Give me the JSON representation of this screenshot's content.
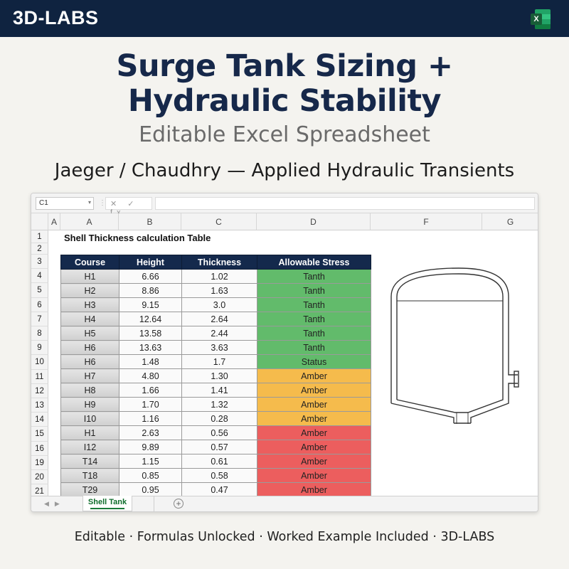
{
  "brand": "3D-LABS",
  "header": {
    "title_line1": "Surge Tank Sizing +",
    "title_line2": "Hydraulic Stability",
    "subtitle": "Editable Excel Spreadsheet",
    "reference": "Jaeger / Chaudhry — Applied Hydraulic Transients"
  },
  "app_icon": {
    "name": "excel-icon",
    "letter": "X"
  },
  "formula_bar": {
    "name_box": "C1",
    "fx": "✕ ✓ fx",
    "content": ""
  },
  "column_headers": [
    "A",
    "A",
    "B",
    "C",
    "D",
    "F",
    "G"
  ],
  "row_numbers": [
    "1",
    "2",
    "3",
    "4",
    "5",
    "6",
    "7",
    "8",
    "9",
    "10",
    "11",
    "12",
    "13",
    "14",
    "15",
    "16",
    "19",
    "20",
    "21"
  ],
  "sheet_title": "Shell Thickness calculation Table",
  "table": {
    "headers": [
      "Course",
      "Height",
      "Thickness",
      "Allowable Stress"
    ],
    "rows": [
      {
        "course": "H1",
        "height": "6.66",
        "thickness": "1.02",
        "stress": "Tanth",
        "status": "green"
      },
      {
        "course": "H2",
        "height": "8.86",
        "thickness": "1.63",
        "stress": "Tanth",
        "status": "green"
      },
      {
        "course": "H3",
        "height": "9.15",
        "thickness": "3.0",
        "stress": "Tanth",
        "status": "green"
      },
      {
        "course": "H4",
        "height": "12.64",
        "thickness": "2.64",
        "stress": "Tanth",
        "status": "green"
      },
      {
        "course": "H5",
        "height": "13.58",
        "thickness": "2.44",
        "stress": "Tanth",
        "status": "green"
      },
      {
        "course": "H6",
        "height": "13.63",
        "thickness": "3.63",
        "stress": "Tanth",
        "status": "green"
      },
      {
        "course": "H6",
        "height": "1.48",
        "thickness": "1.7",
        "stress": "Status",
        "status": "green"
      },
      {
        "course": "H7",
        "height": "4.80",
        "thickness": "1.30",
        "stress": "Amber",
        "status": "amber"
      },
      {
        "course": "H8",
        "height": "1.66",
        "thickness": "1.41",
        "stress": "Amber",
        "status": "amber"
      },
      {
        "course": "H9",
        "height": "1.70",
        "thickness": "1.32",
        "stress": "Amber",
        "status": "amber"
      },
      {
        "course": "I10",
        "height": "1.16",
        "thickness": "0.28",
        "stress": "Amber",
        "status": "amber"
      },
      {
        "course": "H1",
        "height": "2.63",
        "thickness": "0.56",
        "stress": "Amber",
        "status": "red"
      },
      {
        "course": "I12",
        "height": "9.89",
        "thickness": "0.57",
        "stress": "Amber",
        "status": "red"
      },
      {
        "course": "T14",
        "height": "1.15",
        "thickness": "0.61",
        "stress": "Amber",
        "status": "red"
      },
      {
        "course": "T18",
        "height": "0.85",
        "thickness": "0.58",
        "stress": "Amber",
        "status": "red"
      },
      {
        "course": "T29",
        "height": "0.95",
        "thickness": "0.47",
        "stress": "Amber",
        "status": "red"
      }
    ]
  },
  "status_colors": {
    "green": "#62bb6b",
    "amber": "#f5bb4c",
    "red": "#ec5e5e"
  },
  "sheet_tab": "Shell Tank",
  "footer": "Editable · Formulas Unlocked · Worked Example Included · 3D-LABS"
}
